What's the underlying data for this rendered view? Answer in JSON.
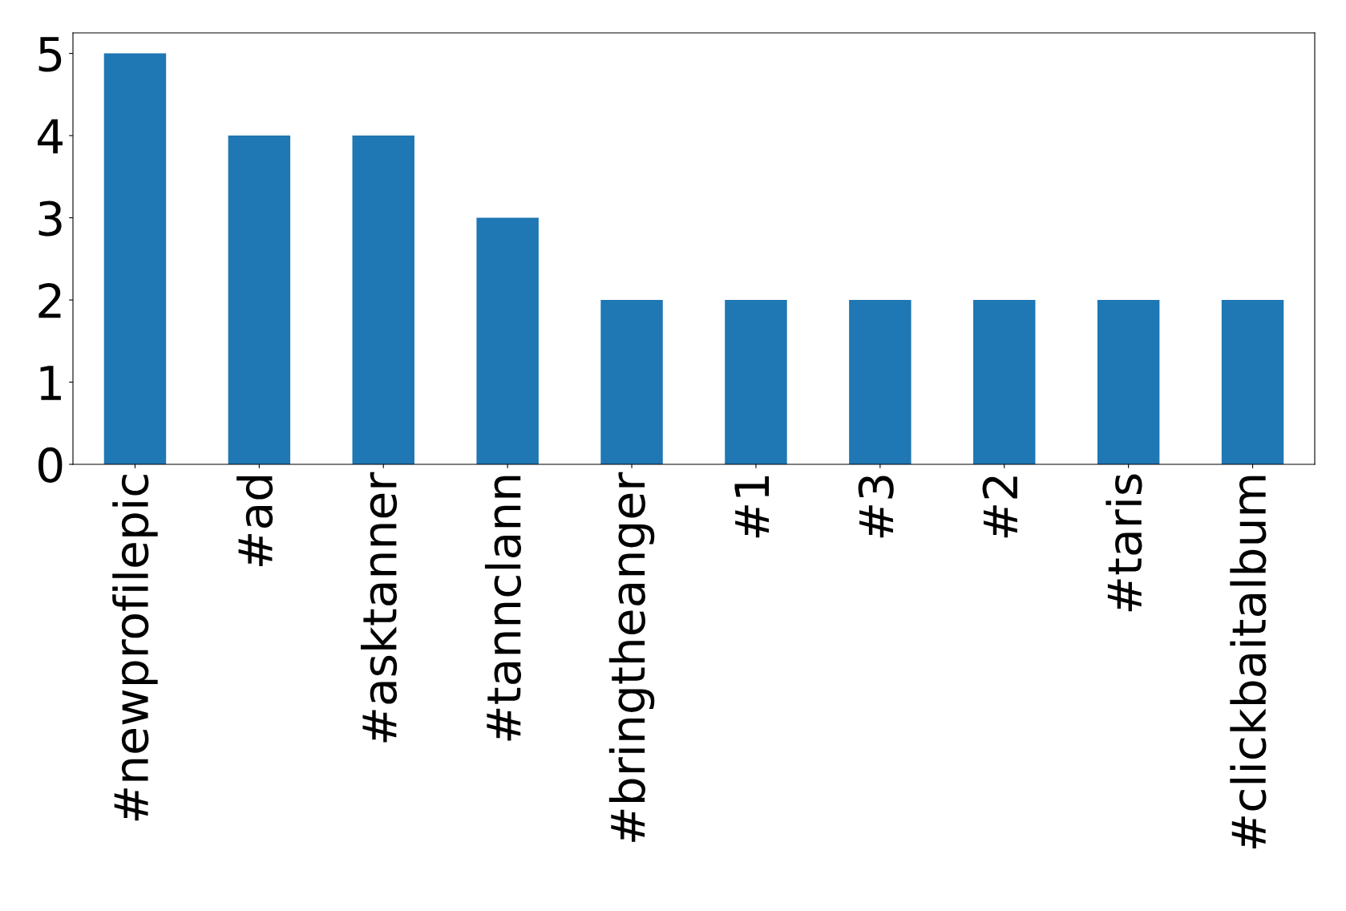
{
  "chart_data": {
    "type": "bar",
    "categories": [
      "#newprofilepic",
      "#ad",
      "#asktanner",
      "#tannclann",
      "#bringtheanger",
      "#1",
      "#3",
      "#2",
      "#taris",
      "#clickbaitalbum"
    ],
    "values": [
      5,
      4,
      4,
      3,
      2,
      2,
      2,
      2,
      2,
      2
    ],
    "color": "#1f77b4",
    "ylim": [
      0,
      5.25
    ],
    "yticks": [
      0,
      1,
      2,
      3,
      4,
      5
    ],
    "grid": false,
    "legend": false
  }
}
